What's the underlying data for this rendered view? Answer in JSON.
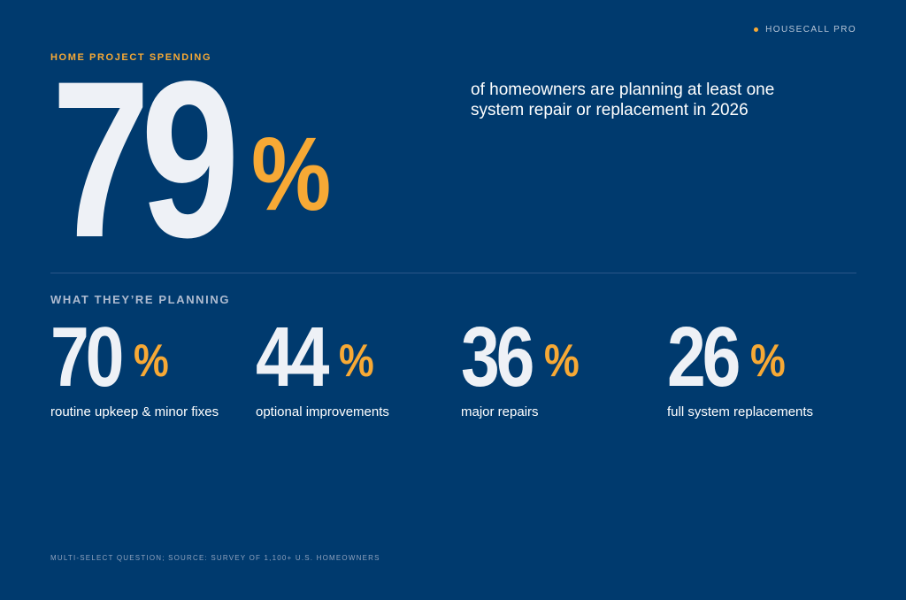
{
  "brand": {
    "name": "HOUSECALL PRO",
    "dot_color": "#f7a935"
  },
  "header": {
    "eyebrow": "HOME PROJECT SPENDING"
  },
  "hero": {
    "value": "79",
    "unit": "%",
    "description": "of homeowners are planning at least one system repair or replacement in 2026"
  },
  "section": {
    "label": "WHAT THEY’RE PLANNING"
  },
  "stats": [
    {
      "value": "70",
      "unit": "%",
      "label": "routine upkeep & minor fixes"
    },
    {
      "value": "44",
      "unit": "%",
      "label": "optional improvements"
    },
    {
      "value": "36",
      "unit": "%",
      "label": "major repairs"
    },
    {
      "value": "26",
      "unit": "%",
      "label": "full system replacements"
    }
  ],
  "footnote": "MULTI-SELECT QUESTION; SOURCE: SURVEY OF 1,100+ U.S. HOMEOWNERS",
  "colors": {
    "background": "#003a6e",
    "accent": "#f7a935",
    "number": "#eef1f6"
  }
}
